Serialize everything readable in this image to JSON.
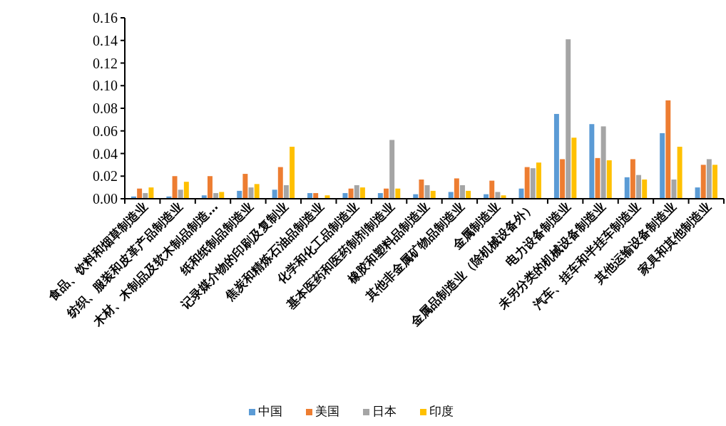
{
  "chart_data": {
    "type": "bar",
    "categories": [
      "食品、饮料和烟草制造业",
      "纺织、服装和皮革产品制造业",
      "木材、木制品及软木制品制造…",
      "纸和纸制品制造业",
      "记录媒介物的印刷及复制业",
      "焦炭和精炼石油品制造业",
      "化学和化工品制造业",
      "基本医药和医药制剂制造业",
      "橡胶和塑料品制造业",
      "其他非金属矿物品制造业",
      "金属制造业",
      "金属品制造业（除机械设备外）",
      "电力设备制造业",
      "未另分类的机械设备制造业",
      "汽车、挂车和半挂车制造业",
      "其他运输设备制造业",
      "家具和其他制造业"
    ],
    "series": [
      {
        "name": "中国",
        "color": "#5b9bd5",
        "values": [
          0.002,
          0.002,
          0.003,
          0.007,
          0.008,
          0.005,
          0.005,
          0.005,
          0.004,
          0.006,
          0.004,
          0.009,
          0.075,
          0.066,
          0.019,
          0.058,
          0.01
        ]
      },
      {
        "name": "美国",
        "color": "#ed7d31",
        "values": [
          0.009,
          0.02,
          0.02,
          0.022,
          0.028,
          0.005,
          0.009,
          0.009,
          0.017,
          0.018,
          0.016,
          0.028,
          0.035,
          0.036,
          0.035,
          0.087,
          0.03
        ]
      },
      {
        "name": "日本",
        "color": "#a5a5a5",
        "values": [
          0.005,
          0.008,
          0.005,
          0.01,
          0.012,
          0,
          0.012,
          0.052,
          0.012,
          0.012,
          0.006,
          0.027,
          0.141,
          0.064,
          0.021,
          0.017,
          0.035
        ]
      },
      {
        "name": "印度",
        "color": "#ffc000",
        "values": [
          0.01,
          0.015,
          0.006,
          0.013,
          0.046,
          0.003,
          0.01,
          0.009,
          0.007,
          0.007,
          0.003,
          0.032,
          0.054,
          0.034,
          0.017,
          0.046,
          0.03
        ]
      }
    ],
    "ylim": [
      0,
      0.16
    ],
    "yticks": [
      {
        "value": 0,
        "label": "0.00"
      },
      {
        "value": 0.02,
        "label": "0.02"
      },
      {
        "value": 0.04,
        "label": "0.04"
      },
      {
        "value": 0.06,
        "label": "0.06"
      },
      {
        "value": 0.08,
        "label": "0.08"
      },
      {
        "value": 0.1,
        "label": "0.10"
      },
      {
        "value": 0.12,
        "label": "0.12"
      },
      {
        "value": 0.14,
        "label": "0.14"
      },
      {
        "value": 0.16,
        "label": "0.16"
      }
    ],
    "grid": false,
    "legend": "bottom"
  }
}
